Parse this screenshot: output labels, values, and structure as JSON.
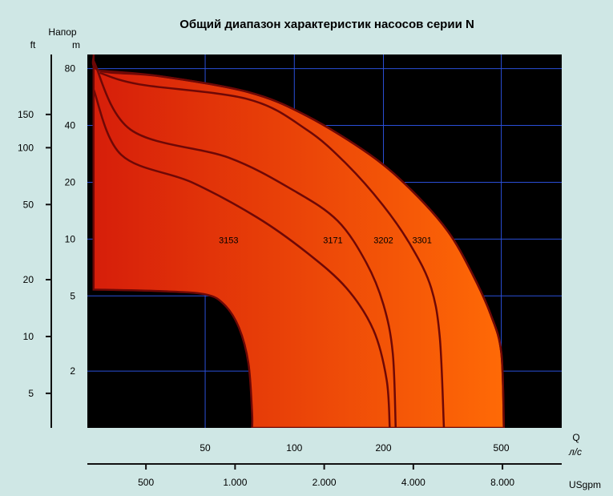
{
  "colors": {
    "background": "#cfe7e5",
    "plot_background": "#000000",
    "grid": "#2a4fd8",
    "fill_left": "#d61e0a",
    "fill_right": "#ff6a06",
    "curve": "#6e0806"
  },
  "chart_data": {
    "type": "area",
    "title": "Общий диапазон характеристик насосов серии N",
    "y_label_title": "Напор",
    "y_unit_m": "m",
    "y_unit_ft": "ft",
    "x_label": "Q",
    "x_unit_ls": "л/с",
    "x_unit_usgpm": "USgpm",
    "x_scale": "log",
    "y_scale": "log",
    "xlim_ls": [
      20,
      800
    ],
    "ylim_m": [
      1,
      95
    ],
    "grid": true,
    "m_ticks": [
      "80",
      "40",
      "20",
      "10",
      "5",
      "2"
    ],
    "m_tick_values": [
      80,
      40,
      20,
      10,
      5,
      2
    ],
    "ft_ticks": [
      "150",
      "100",
      "50",
      "20",
      "10",
      "5"
    ],
    "ft_tick_values": [
      150,
      100,
      50,
      20,
      10,
      5
    ],
    "ls_ticks": [
      "50",
      "100",
      "200",
      "500"
    ],
    "ls_tick_values": [
      50,
      100,
      200,
      500
    ],
    "usgpm_ticks": [
      "500",
      "1.000",
      "2.000",
      "4.000",
      "8.000"
    ],
    "usgpm_tick_values": [
      500,
      1000,
      2000,
      4000,
      8000
    ],
    "envelope": {
      "upper": [
        [
          21,
          95
        ],
        [
          22,
          78
        ],
        [
          35,
          73
        ],
        [
          70,
          60
        ],
        [
          110,
          45
        ],
        [
          180,
          28
        ],
        [
          250,
          18
        ],
        [
          330,
          11
        ],
        [
          400,
          6.5
        ],
        [
          460,
          4
        ],
        [
          500,
          2.5
        ],
        [
          510,
          1
        ]
      ],
      "lower": [
        [
          21,
          5.4
        ],
        [
          35,
          5.3
        ],
        [
          50,
          5.1
        ],
        [
          58,
          4.5
        ],
        [
          65,
          3.4
        ],
        [
          70,
          2.2
        ],
        [
          72,
          1.2
        ],
        [
          72,
          1
        ]
      ]
    },
    "series": [
      {
        "name": "3153",
        "points": [
          [
            21,
            62
          ],
          [
            26,
            28
          ],
          [
            45,
            20
          ],
          [
            75,
            13
          ],
          [
            110,
            8.5
          ],
          [
            150,
            5.5
          ],
          [
            185,
            3.3
          ],
          [
            205,
            1.8
          ],
          [
            210,
            1
          ]
        ],
        "label_at": [
          60,
          9.5
        ]
      },
      {
        "name": "3171",
        "points": [
          [
            21,
            88
          ],
          [
            28,
            38
          ],
          [
            60,
            27
          ],
          [
            100,
            18
          ],
          [
            140,
            12.5
          ],
          [
            175,
            7.5
          ],
          [
            200,
            4.5
          ],
          [
            215,
            2.5
          ],
          [
            220,
            1
          ]
        ],
        "label_at": [
          135,
          9.5
        ]
      },
      {
        "name": "3202",
        "points": [
          [
            22,
            76
          ],
          [
            30,
            66
          ],
          [
            70,
            55
          ],
          [
            110,
            38
          ],
          [
            150,
            25
          ],
          [
            200,
            15
          ],
          [
            250,
            9
          ],
          [
            290,
            5.5
          ],
          [
            310,
            3
          ],
          [
            320,
            1
          ]
        ],
        "label_at": [
          200,
          9.5
        ]
      },
      {
        "name": "3301",
        "points": [
          [
            22,
            78
          ],
          [
            35,
            73
          ],
          [
            70,
            60
          ],
          [
            110,
            45
          ],
          [
            180,
            28
          ],
          [
            250,
            18
          ],
          [
            330,
            11
          ],
          [
            400,
            6.5
          ],
          [
            460,
            4
          ],
          [
            500,
            2.5
          ],
          [
            510,
            1
          ]
        ],
        "label_at": [
          270,
          9.5
        ]
      }
    ]
  }
}
